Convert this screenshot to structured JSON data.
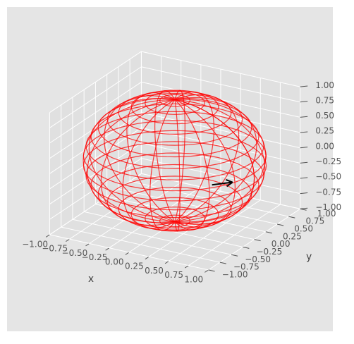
{
  "chart_data": {
    "type": "wireframe3d",
    "xlabel": "x",
    "ylabel": "y",
    "xlim": [
      -1,
      1
    ],
    "ylim": [
      -1,
      1
    ],
    "zlim": [
      -1,
      1
    ],
    "xticks": [
      {
        "value": -1,
        "label": "−1.00"
      },
      {
        "value": -0.75,
        "label": "−0.75"
      },
      {
        "value": -0.5,
        "label": "−0.50"
      },
      {
        "value": -0.25,
        "label": "−0.25"
      },
      {
        "value": 0,
        "label": "0.00"
      },
      {
        "value": 0.25,
        "label": "0.25"
      },
      {
        "value": 0.5,
        "label": "0.50"
      },
      {
        "value": 0.75,
        "label": "0.75"
      },
      {
        "value": 1,
        "label": "1.00"
      }
    ],
    "yticks": [
      {
        "value": -1,
        "label": "−1.00"
      },
      {
        "value": -0.75,
        "label": "−0.75"
      },
      {
        "value": -0.5,
        "label": "−0.50"
      },
      {
        "value": -0.25,
        "label": "−0.25"
      },
      {
        "value": 0,
        "label": "0.00"
      },
      {
        "value": 0.25,
        "label": "0.25"
      },
      {
        "value": 0.5,
        "label": "0.50"
      },
      {
        "value": 0.75,
        "label": "0.75"
      },
      {
        "value": 1,
        "label": "1.00"
      }
    ],
    "zticks": [
      {
        "value": -1,
        "label": "−1.00"
      },
      {
        "value": -0.75,
        "label": "−0.75"
      },
      {
        "value": -0.5,
        "label": "−0.50"
      },
      {
        "value": -0.25,
        "label": "−0.25"
      },
      {
        "value": 0,
        "label": "0.00"
      },
      {
        "value": 0.25,
        "label": "0.25"
      },
      {
        "value": 0.5,
        "label": "0.50"
      },
      {
        "value": 0.75,
        "label": "0.75"
      },
      {
        "value": 1,
        "label": "1.00"
      }
    ],
    "surface": {
      "shape": "sphere",
      "radius": 1,
      "rows": 20,
      "cols": 20,
      "color": "#ff0000"
    },
    "vector": {
      "origin": [
        0.26,
        0.36,
        -0.5
      ],
      "direction": [
        0.2,
        0.1,
        0.05
      ],
      "color": "#000000"
    }
  }
}
